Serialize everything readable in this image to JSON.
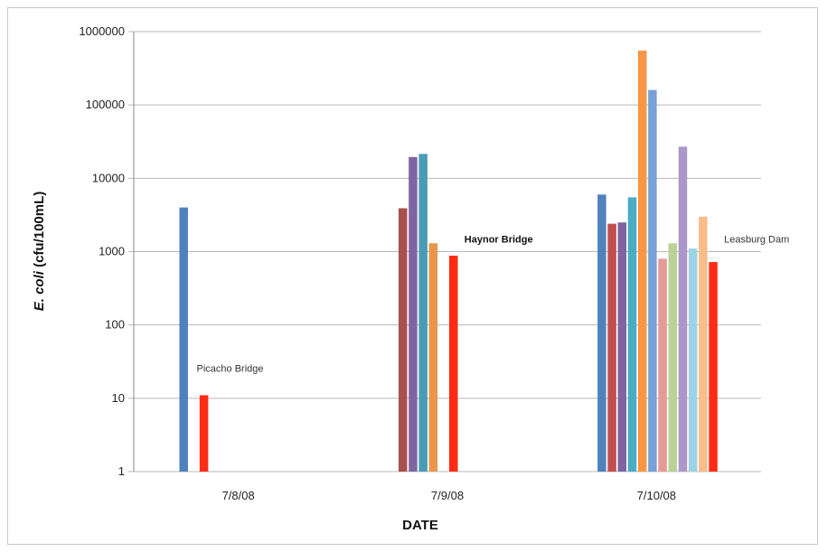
{
  "chart_data": {
    "type": "bar",
    "scale": "log",
    "ylim": [
      1,
      1000000
    ],
    "yticks": [
      "1",
      "10",
      "100",
      "1000",
      "10000",
      "100000",
      "1000000"
    ],
    "ylabel_italic": "E. coli",
    "ylabel_rest": " (cfu/100mL)",
    "xlabel": "DATE",
    "categories": [
      "7/8/08",
      "7/9/08",
      "7/10/08"
    ],
    "grid": "horizontal",
    "groups": [
      {
        "category": "7/8/08",
        "annotation": "Picacho Bridge",
        "annotation_bold": false,
        "bars": [
          {
            "color": "#4f81bd",
            "value": 4000
          },
          {
            "color": "#ff2b14",
            "value": 11
          }
        ]
      },
      {
        "category": "7/9/08",
        "annotation": "Haynor Bridge",
        "annotation_bold": true,
        "bars": [
          {
            "color": "#a9504c",
            "value": 3900
          },
          {
            "color": "#8064a2",
            "value": 19500
          },
          {
            "color": "#4a9bb5",
            "value": 21500
          },
          {
            "color": "#e9964c",
            "value": 1300
          },
          {
            "color": "#ff2b14",
            "value": 880
          }
        ]
      },
      {
        "category": "7/10/08",
        "annotation": "Leasburg Dam",
        "annotation_bold": false,
        "bars": [
          {
            "color": "#4f81bd",
            "value": 6000
          },
          {
            "color": "#c0504d",
            "value": 2400
          },
          {
            "color": "#8064a2",
            "value": 2500
          },
          {
            "color": "#4bacc6",
            "value": 5500
          },
          {
            "color": "#f79646",
            "value": 550000
          },
          {
            "color": "#7ba0d8",
            "value": 160000
          },
          {
            "color": "#e49a97",
            "value": 800
          },
          {
            "color": "#bcd197",
            "value": 1300
          },
          {
            "color": "#ac97c9",
            "value": 27000
          },
          {
            "color": "#9ed2e4",
            "value": 1100
          },
          {
            "color": "#f9bd8a",
            "value": 3000
          },
          {
            "color": "#ff2b14",
            "value": 720
          }
        ]
      }
    ]
  }
}
